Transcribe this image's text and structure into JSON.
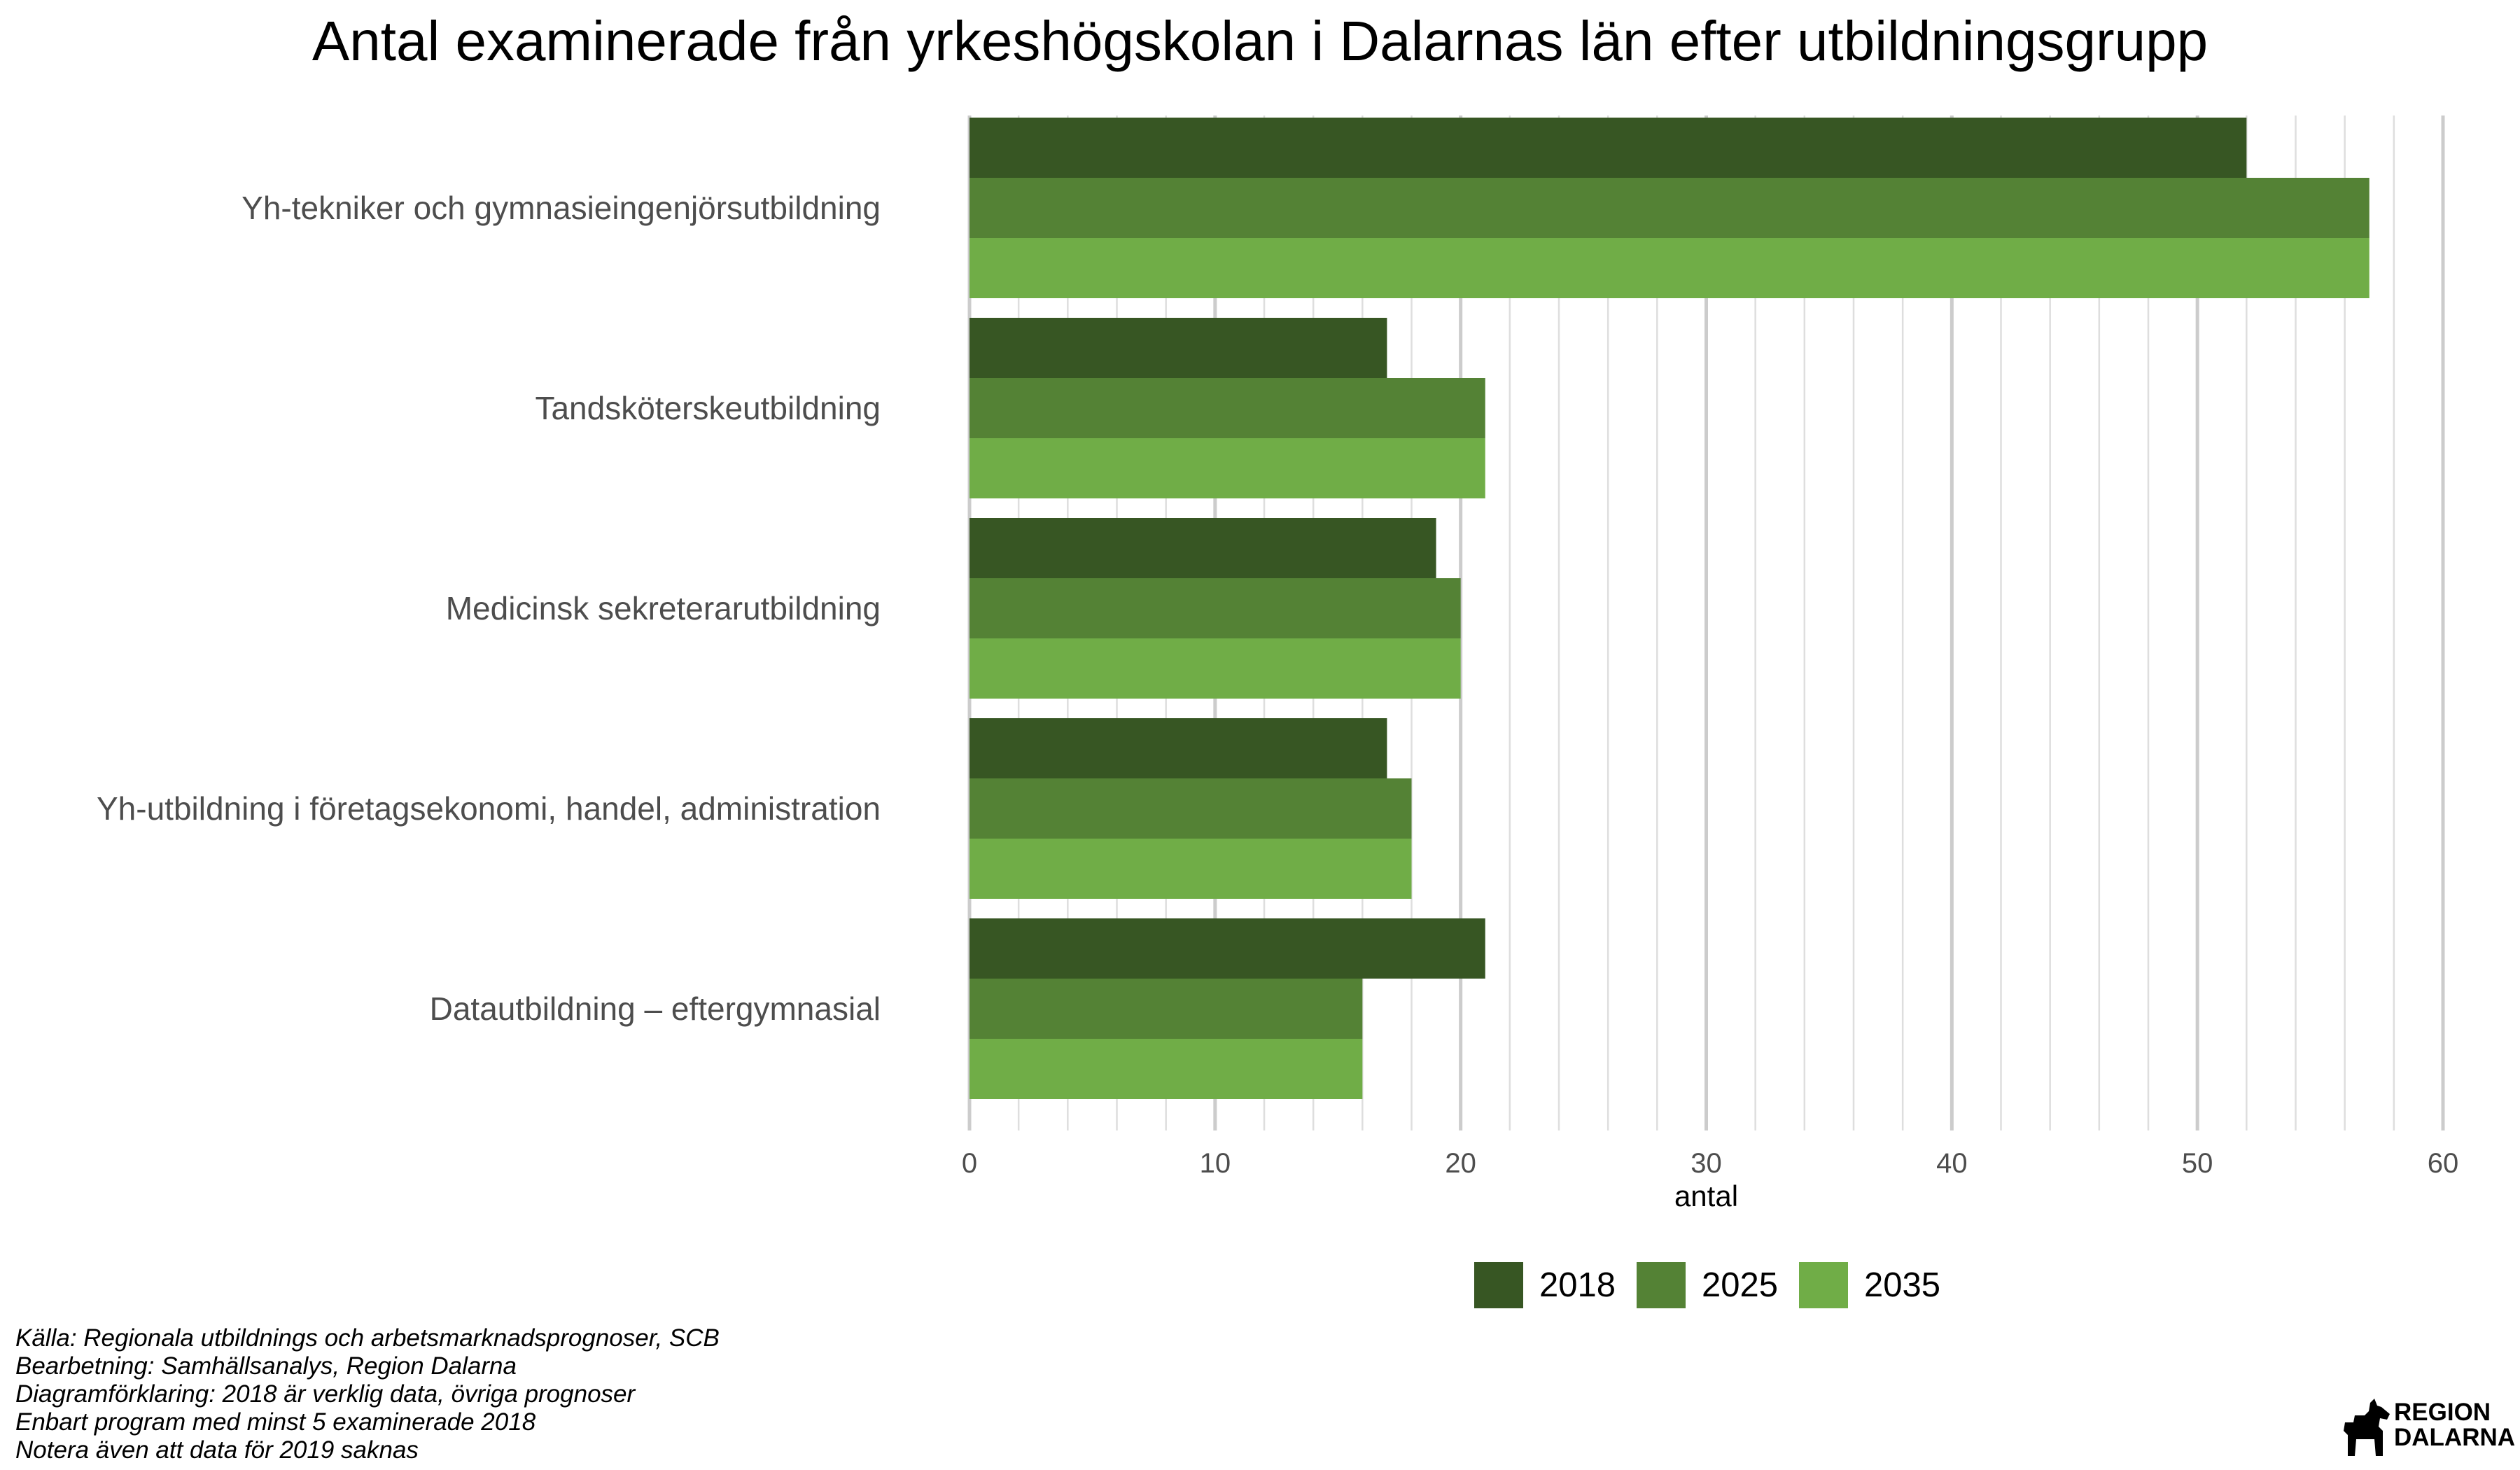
{
  "chart_data": {
    "type": "bar",
    "orientation": "horizontal",
    "title": "Antal examinerade från yrkeshögskolan i Dalarnas län efter utbildningsgrupp",
    "xlabel": "antal",
    "ylabel": "",
    "xlim": [
      0,
      60
    ],
    "xticks": [
      "0",
      "10",
      "20",
      "30",
      "40",
      "50",
      "60"
    ],
    "grid": "vertical",
    "legend_position": "bottom",
    "categories": [
      "Yh-tekniker och gymnasieingenjörsutbildning",
      "Tandsköterskeutbildning",
      "Medicinsk sekreterarutbildning",
      "Yh-utbildning i företagsekonomi, handel, administration",
      "Datautbildning – eftergymnasial"
    ],
    "series": [
      {
        "name": "2018",
        "color": "#375623",
        "values": [
          52,
          17,
          19,
          17,
          21
        ]
      },
      {
        "name": "2025",
        "color": "#548235",
        "values": [
          57,
          21,
          20,
          18,
          16
        ]
      },
      {
        "name": "2035",
        "color": "#70ad47",
        "values": [
          57,
          21,
          20,
          18,
          16
        ]
      }
    ]
  },
  "footnotes": [
    "Källa: Regionala utbildnings och arbetsmarknadsprognoser, SCB",
    "Bearbetning: Samhällsanalys, Region Dalarna",
    "Diagramförklaring: 2018 är verklig data, övriga prognoser",
    "Enbart program med minst 5 examinerade 2018",
    "Notera även att data för 2019 saknas"
  ],
  "logo": {
    "line1": "REGION",
    "line2": "DALARNA",
    "icon": "dala-horse-icon"
  }
}
